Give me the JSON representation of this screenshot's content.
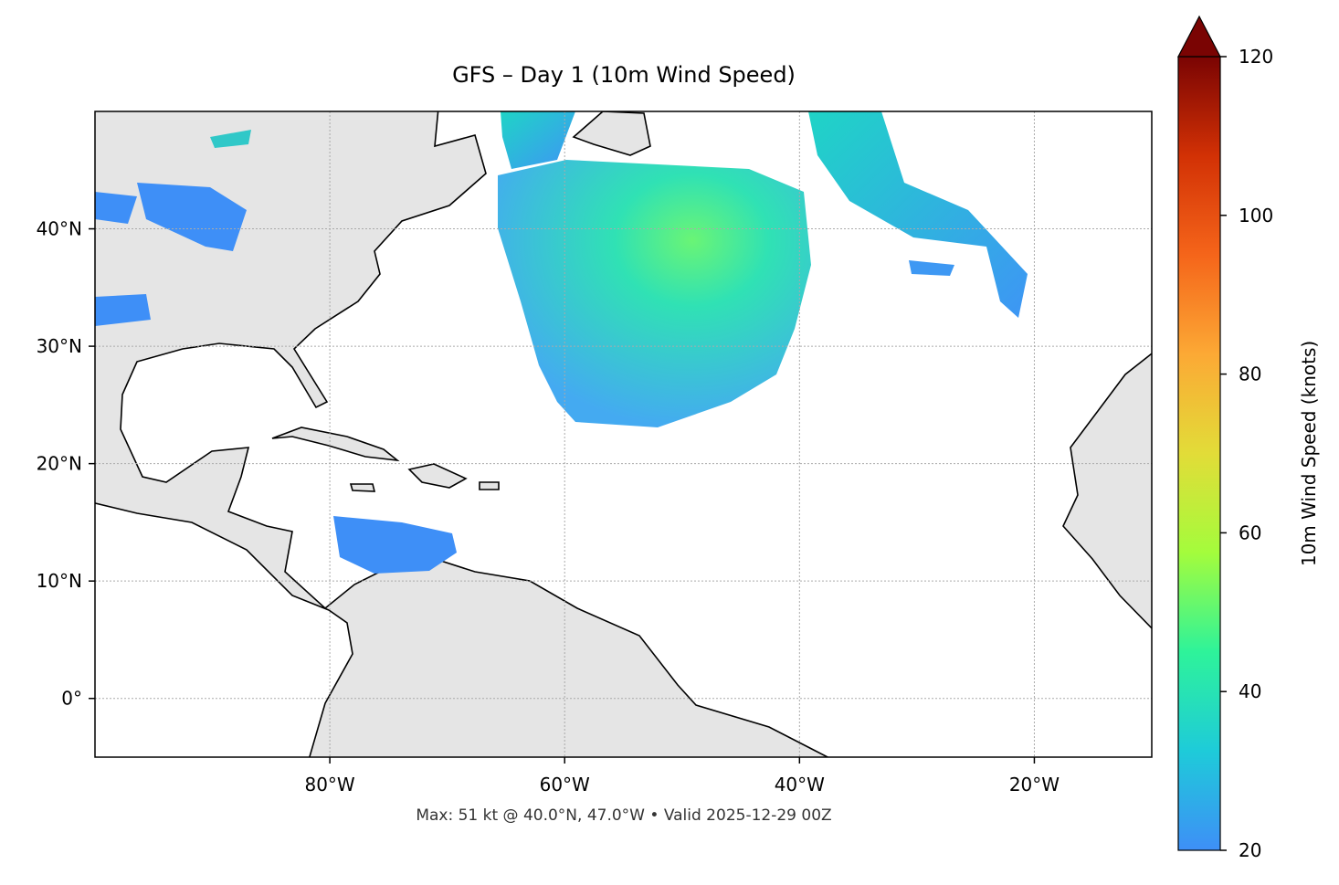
{
  "chart_data": {
    "type": "map",
    "title": "GFS – Day 1 (10m Wind Speed)",
    "footnote": "Max: 51 kt @ 40.0°N, 47.0°W • Valid 2025-12-29 00Z",
    "xlim": [
      -100,
      -10
    ],
    "ylim": [
      -5,
      50
    ],
    "xticks": [
      {
        "value": -80,
        "label": "80°W"
      },
      {
        "value": -60,
        "label": "60°W"
      },
      {
        "value": -40,
        "label": "40°W"
      },
      {
        "value": -20,
        "label": "20°W"
      }
    ],
    "yticks": [
      {
        "value": 0,
        "label": "0°"
      },
      {
        "value": 10,
        "label": "10°N"
      },
      {
        "value": 20,
        "label": "20°N"
      },
      {
        "value": 30,
        "label": "30°N"
      },
      {
        "value": 40,
        "label": "40°N"
      }
    ],
    "grid": true,
    "colorbar": {
      "label": "10m Wind Speed (knots)",
      "lim": [
        20,
        120
      ],
      "ticks": [
        20,
        40,
        60,
        80,
        100,
        120
      ],
      "extend": "max",
      "colors": [
        "#3e8ff7",
        "#1ecbd9",
        "#2ef39a",
        "#a4fc3c",
        "#e2dc38",
        "#fca935",
        "#f5651a",
        "#d23105",
        "#7a0403"
      ]
    }
  }
}
